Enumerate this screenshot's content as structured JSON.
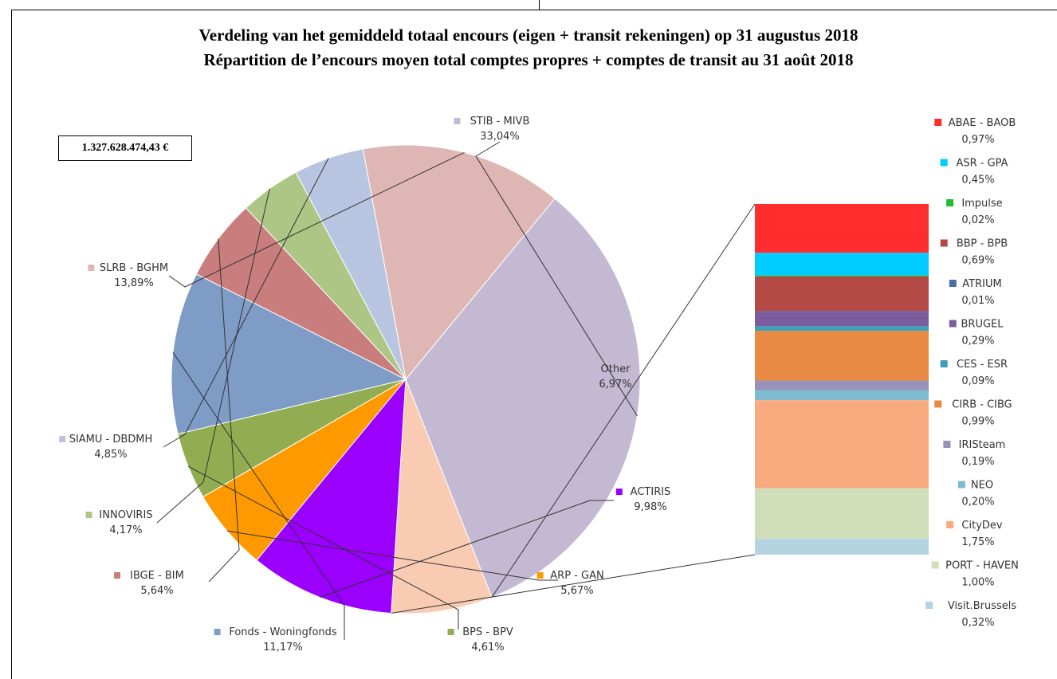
{
  "chart_data": {
    "type": "pie",
    "title": "Verdeling van het gemiddeld totaal encours (eigen + transit rekeningen) op 31 augustus 2018",
    "subtitle": "Répartition de l’encours moyen total comptes propres + comptes de transit au 31 août 2018",
    "total_label": "1.327.628.474,43 €",
    "slices": [
      {
        "name": "STIB - MIVB",
        "value": 33.04,
        "label": "33,04%",
        "color": "#C3B9D3"
      },
      {
        "name": "Other",
        "value": 6.97,
        "label": "6,97%",
        "color": "#F9CBB3"
      },
      {
        "name": "ACTIRIS",
        "value": 9.98,
        "label": "9,98%",
        "color": "#9B00FF"
      },
      {
        "name": "ARP - GAN",
        "value": 5.67,
        "label": "5,67%",
        "color": "#FF9900"
      },
      {
        "name": "BPS - BPV",
        "value": 4.61,
        "label": "4,61%",
        "color": "#92AD51"
      },
      {
        "name": "Fonds - Woningfonds",
        "value": 11.17,
        "label": "11,17%",
        "color": "#7F9CC7"
      },
      {
        "name": "IBGE - BIM",
        "value": 5.64,
        "label": "5,64%",
        "color": "#C97D7D"
      },
      {
        "name": "INNOVIRIS",
        "value": 4.17,
        "label": "4,17%",
        "color": "#ADC686"
      },
      {
        "name": "SIAMU - DBDMH",
        "value": 4.85,
        "label": "4,85%",
        "color": "#B7C5E0"
      },
      {
        "name": "SLRB - BGHM",
        "value": 13.89,
        "label": "13,89%",
        "color": "#DEB7B4"
      }
    ],
    "other_breakdown": [
      {
        "name": "ABAE - BAOB",
        "value": 0.97,
        "label": "0,97%",
        "color": "#FF2D2D"
      },
      {
        "name": "ASR - GPA",
        "value": 0.45,
        "label": "0,45%",
        "color": "#00CCFF"
      },
      {
        "name": "Impulse",
        "value": 0.02,
        "label": "0,02%",
        "color": "#22BB33"
      },
      {
        "name": "BBP - BPB",
        "value": 0.69,
        "label": "0,69%",
        "color": "#B34A46"
      },
      {
        "name": "ATRIUM",
        "value": 0.01,
        "label": "0,01%",
        "color": "#4A6FA5"
      },
      {
        "name": "BRUGEL",
        "value": 0.29,
        "label": "0,29%",
        "color": "#7B5C9E"
      },
      {
        "name": "CES - ESR",
        "value": 0.09,
        "label": "0,09%",
        "color": "#3AA0B8"
      },
      {
        "name": "CIRB - CIBG",
        "value": 0.99,
        "label": "0,99%",
        "color": "#E88A44"
      },
      {
        "name": "IRISteam",
        "value": 0.19,
        "label": "0,19%",
        "color": "#9A91BB"
      },
      {
        "name": "NEO",
        "value": 0.2,
        "label": "0,20%",
        "color": "#7DBBD0"
      },
      {
        "name": "CityDev",
        "value": 1.75,
        "label": "1,75%",
        "color": "#F9AB7F"
      },
      {
        "name": "PORT - HAVEN",
        "value": 1.0,
        "label": "1,00%",
        "color": "#CFDDB9"
      },
      {
        "name": "Visit.Brussels",
        "value": 0.32,
        "label": "0,32%",
        "color": "#B4D4E2"
      }
    ]
  }
}
